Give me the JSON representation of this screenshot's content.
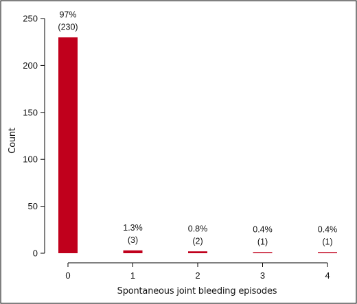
{
  "chart_data": {
    "type": "bar",
    "categories": [
      "0",
      "1",
      "2",
      "3",
      "4"
    ],
    "values": [
      230,
      3,
      2,
      1,
      1
    ],
    "labels": [
      {
        "percent": "97%",
        "count": "(230)"
      },
      {
        "percent": "1.3%",
        "count": "(3)"
      },
      {
        "percent": "0.8%",
        "count": "(2)"
      },
      {
        "percent": "0.4%",
        "count": "(1)"
      },
      {
        "percent": "0.4%",
        "count": "(1)"
      }
    ],
    "xlabel": "Spontaneous joint bleeding episodes",
    "ylabel": "Count",
    "ylim": [
      0,
      250
    ],
    "yticks": [
      "0",
      "50",
      "100",
      "150",
      "200",
      "250"
    ],
    "bar_color": "#c0001c",
    "grid": false,
    "frame": true
  }
}
